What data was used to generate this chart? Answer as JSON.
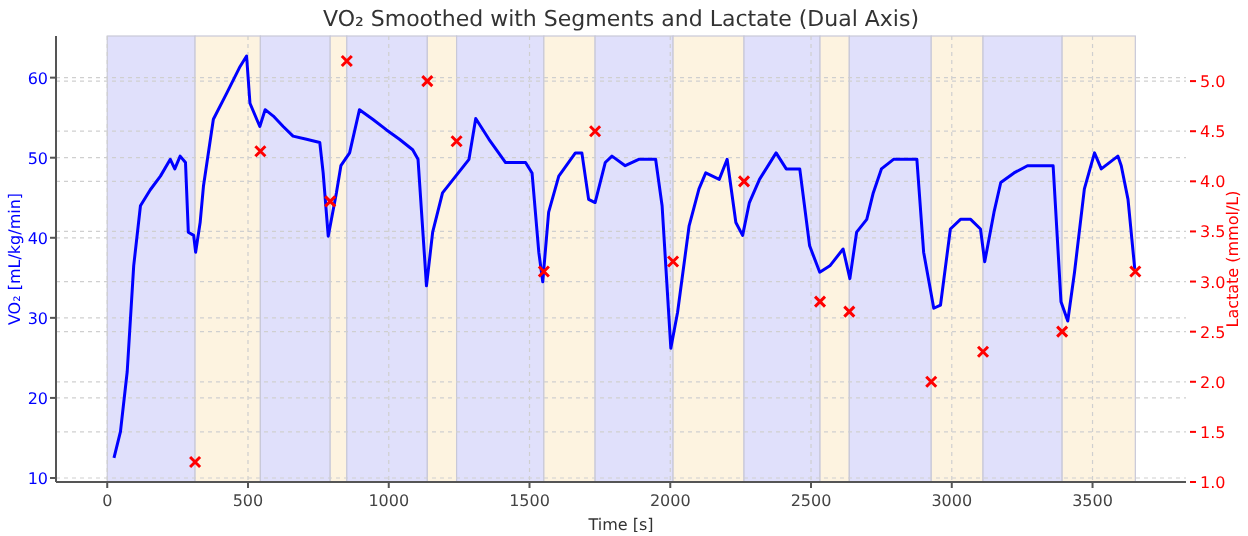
{
  "chart_data": {
    "type": "line",
    "title": "VO₂ Smoothed with Segments and Lactate (Dual Axis)",
    "xlabel": "Time [s]",
    "ylabel": "VO₂ [mL/kg/min]",
    "y2label": "Lactate (mmol/L)",
    "xlim": [
      -182,
      3832
    ],
    "xticks": [
      0,
      500,
      1000,
      1500,
      2000,
      2500,
      3000,
      3500
    ],
    "ylim": [
      9.5,
      65.2
    ],
    "yticks": [
      10,
      20,
      30,
      40,
      50,
      60
    ],
    "y2lim": [
      1.0,
      5.45
    ],
    "y2ticks": [
      {
        "value": 1,
        "label": "1.0"
      },
      {
        "value": 1.5,
        "label": "1.5"
      },
      {
        "value": 2,
        "label": "2.0"
      },
      {
        "value": 2.5,
        "label": "2.5"
      },
      {
        "value": 3,
        "label": "3.0"
      },
      {
        "value": 3.5,
        "label": "3.5"
      },
      {
        "value": 4,
        "label": "4.0"
      },
      {
        "value": 4.5,
        "label": "4.5"
      },
      {
        "value": 5,
        "label": "5.0"
      }
    ],
    "grid": true,
    "bands": [
      {
        "axis": "x",
        "from": 0,
        "to": 312,
        "color": "#e0e0fb"
      },
      {
        "axis": "x",
        "from": 312,
        "to": 544,
        "color": "#fdf3e0"
      },
      {
        "axis": "x",
        "from": 544,
        "to": 792,
        "color": "#e0e0fb"
      },
      {
        "axis": "x",
        "from": 792,
        "to": 851,
        "color": "#fdf3e0"
      },
      {
        "axis": "x",
        "from": 851,
        "to": 1137,
        "color": "#e0e0fb"
      },
      {
        "axis": "x",
        "from": 1137,
        "to": 1241,
        "color": "#fdf3e0"
      },
      {
        "axis": "x",
        "from": 1241,
        "to": 1551,
        "color": "#e0e0fb"
      },
      {
        "axis": "x",
        "from": 1551,
        "to": 1733,
        "color": "#fdf3e0"
      },
      {
        "axis": "x",
        "from": 1733,
        "to": 2010,
        "color": "#e0e0fb"
      },
      {
        "axis": "x",
        "from": 2010,
        "to": 2262,
        "color": "#fdf3e0"
      },
      {
        "axis": "x",
        "from": 2262,
        "to": 2532,
        "color": "#e0e0fb"
      },
      {
        "axis": "x",
        "from": 2532,
        "to": 2636,
        "color": "#fdf3e0"
      },
      {
        "axis": "x",
        "from": 2636,
        "to": 2927,
        "color": "#e0e0fb"
      },
      {
        "axis": "x",
        "from": 2927,
        "to": 3111,
        "color": "#fdf3e0"
      },
      {
        "axis": "x",
        "from": 3111,
        "to": 3392,
        "color": "#e0e0fb"
      },
      {
        "axis": "x",
        "from": 3392,
        "to": 3652,
        "color": "#fdf3e0"
      }
    ],
    "series": [
      {
        "color": "#0000ff",
        "x": [
          24,
          47,
          71,
          94,
          118,
          153,
          189,
          224,
          240,
          259,
          278,
          288,
          307,
          314,
          330,
          342,
          377,
          425,
          472,
          495,
          507,
          531,
          542,
          561,
          590,
          625,
          660,
          708,
          755,
          767,
          785,
          814,
          830,
          861,
          896,
          943,
          991,
          1038,
          1085,
          1104,
          1134,
          1156,
          1191,
          1238,
          1285,
          1309,
          1356,
          1415,
          1486,
          1509,
          1533,
          1547,
          1568,
          1604,
          1663,
          1686,
          1710,
          1733,
          1769,
          1793,
          1840,
          1888,
          1948,
          1971,
          2002,
          2026,
          2067,
          2102,
          2126,
          2174,
          2202,
          2233,
          2257,
          2281,
          2317,
          2376,
          2412,
          2460,
          2495,
          2531,
          2567,
          2614,
          2638,
          2662,
          2698,
          2721,
          2750,
          2793,
          2876,
          2900,
          2936,
          2960,
          2995,
          3031,
          3067,
          3102,
          3117,
          3150,
          3174,
          3221,
          3269,
          3317,
          3360,
          3388,
          3412,
          3436,
          3471,
          3507,
          3531,
          3590,
          3602,
          3626,
          3650
        ],
        "values": [
          12.5,
          15.8,
          23.3,
          36.5,
          44,
          46,
          47.7,
          49.8,
          48.6,
          50.2,
          49.4,
          40.7,
          40.3,
          38.2,
          41.9,
          46.5,
          54.8,
          58.1,
          61.4,
          62.7,
          56.8,
          54.8,
          53.9,
          56,
          55.2,
          53.9,
          52.7,
          52.3,
          51.9,
          48.1,
          40.2,
          45.6,
          49,
          50.6,
          56,
          54.8,
          53.5,
          52.3,
          51,
          49.8,
          34,
          40.7,
          45.6,
          47.7,
          49.8,
          54.9,
          52.3,
          49.4,
          49.4,
          48.1,
          38.2,
          34.5,
          43.2,
          47.7,
          50.6,
          50.6,
          44.8,
          44.4,
          49.4,
          50.2,
          49,
          49.8,
          49.8,
          44,
          26.2,
          30.7,
          41.5,
          46.1,
          48.1,
          47.3,
          49.8,
          41.9,
          40.3,
          44.4,
          47.3,
          50.6,
          48.6,
          48.6,
          39,
          35.7,
          36.5,
          38.6,
          34.9,
          40.7,
          42.3,
          45.6,
          48.6,
          49.8,
          49.8,
          38.2,
          31.2,
          31.6,
          41.1,
          42.3,
          42.3,
          41.1,
          37,
          43.2,
          46.9,
          48.1,
          49,
          49,
          49,
          32,
          29.6,
          35.7,
          46.1,
          50.6,
          48.6,
          50.2,
          49,
          44.8,
          36.1
        ]
      },
      {
        "type": "scatter",
        "axis": "y2",
        "color": "#ff0000",
        "marker": "cross",
        "x": [
          312,
          544,
          792,
          851,
          1137,
          1241,
          1551,
          1733,
          2010,
          2262,
          2532,
          2636,
          2927,
          3111,
          3392,
          3652
        ],
        "values": [
          1.2,
          4.3,
          3.8,
          5.2,
          5.0,
          4.4,
          3.1,
          4.5,
          3.2,
          4.0,
          2.8,
          2.7,
          2.0,
          2.3,
          2.5,
          3.1
        ]
      }
    ]
  }
}
